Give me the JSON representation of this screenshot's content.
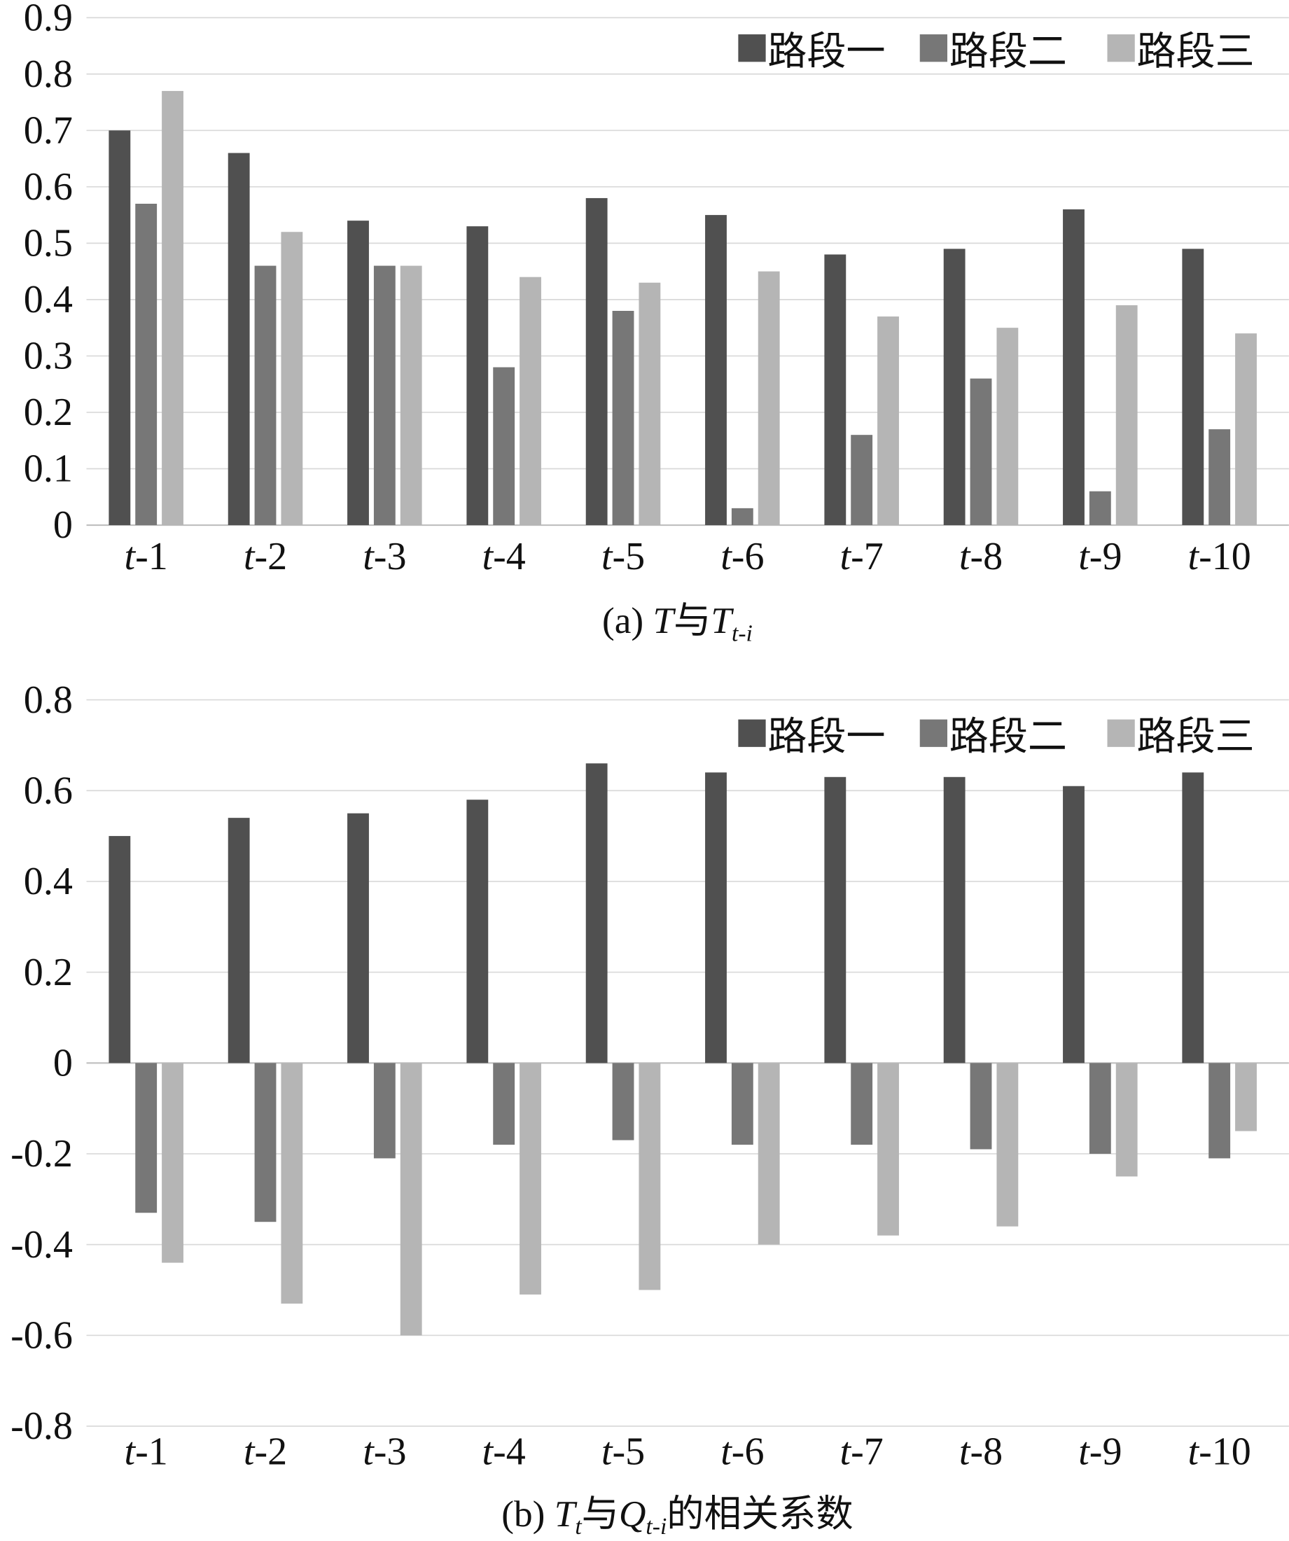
{
  "chart_data": [
    {
      "type": "bar",
      "title_parts": {
        "prefix": "(a) ",
        "a": "T",
        "mid": "与",
        "b": "T",
        "b_sub": "t-i",
        "suffix": ""
      },
      "xlabel": "",
      "ylabel": "",
      "categories": [
        "t-1",
        "t-2",
        "t-3",
        "t-4",
        "t-5",
        "t-6",
        "t-7",
        "t-8",
        "t-9",
        "t-10"
      ],
      "ylim": [
        0,
        0.9
      ],
      "yticks": [
        "0",
        "0.1",
        "0.2",
        "0.3",
        "0.4",
        "0.5",
        "0.6",
        "0.7",
        "0.8",
        "0.9"
      ],
      "ytick_values": [
        0,
        0.1,
        0.2,
        0.3,
        0.4,
        0.5,
        0.6,
        0.7,
        0.8,
        0.9
      ],
      "grid": true,
      "legend_position": "top-right",
      "series": [
        {
          "name": "路段一",
          "color": "#505050",
          "values": [
            0.7,
            0.66,
            0.54,
            0.53,
            0.58,
            0.55,
            0.48,
            0.49,
            0.56,
            0.49
          ]
        },
        {
          "name": "路段二",
          "color": "#777777",
          "values": [
            0.57,
            0.46,
            0.46,
            0.28,
            0.38,
            0.03,
            0.16,
            0.26,
            0.06,
            0.17
          ]
        },
        {
          "name": "路段三",
          "color": "#b5b5b5",
          "values": [
            0.77,
            0.52,
            0.46,
            0.44,
            0.43,
            0.45,
            0.37,
            0.35,
            0.39,
            0.34
          ]
        }
      ]
    },
    {
      "type": "bar",
      "title_parts": {
        "prefix": "(b) ",
        "a": "T",
        "a_sub": "t",
        "mid": "与",
        "b": "Q",
        "b_sub": "t-i",
        "suffix": "的相关系数"
      },
      "xlabel": "",
      "ylabel": "",
      "categories": [
        "t-1",
        "t-2",
        "t-3",
        "t-4",
        "t-5",
        "t-6",
        "t-7",
        "t-8",
        "t-9",
        "t-10"
      ],
      "ylim": [
        -0.8,
        0.8
      ],
      "yticks": [
        "-0.8",
        "-0.6",
        "-0.4",
        "-0.2",
        "0",
        "0.2",
        "0.4",
        "0.6",
        "0.8"
      ],
      "ytick_values": [
        -0.8,
        -0.6,
        -0.4,
        -0.2,
        0,
        0.2,
        0.4,
        0.6,
        0.8
      ],
      "grid": true,
      "legend_position": "top-right",
      "series": [
        {
          "name": "路段一",
          "color": "#505050",
          "values": [
            0.5,
            0.54,
            0.55,
            0.58,
            0.66,
            0.64,
            0.63,
            0.63,
            0.61,
            0.64
          ]
        },
        {
          "name": "路段二",
          "color": "#777777",
          "values": [
            -0.33,
            -0.35,
            -0.21,
            -0.18,
            -0.17,
            -0.18,
            -0.18,
            -0.19,
            -0.2,
            -0.21
          ]
        },
        {
          "name": "路段三",
          "color": "#b5b5b5",
          "values": [
            -0.44,
            -0.53,
            -0.6,
            -0.51,
            -0.5,
            -0.4,
            -0.38,
            -0.36,
            -0.25,
            -0.15
          ]
        }
      ]
    }
  ]
}
